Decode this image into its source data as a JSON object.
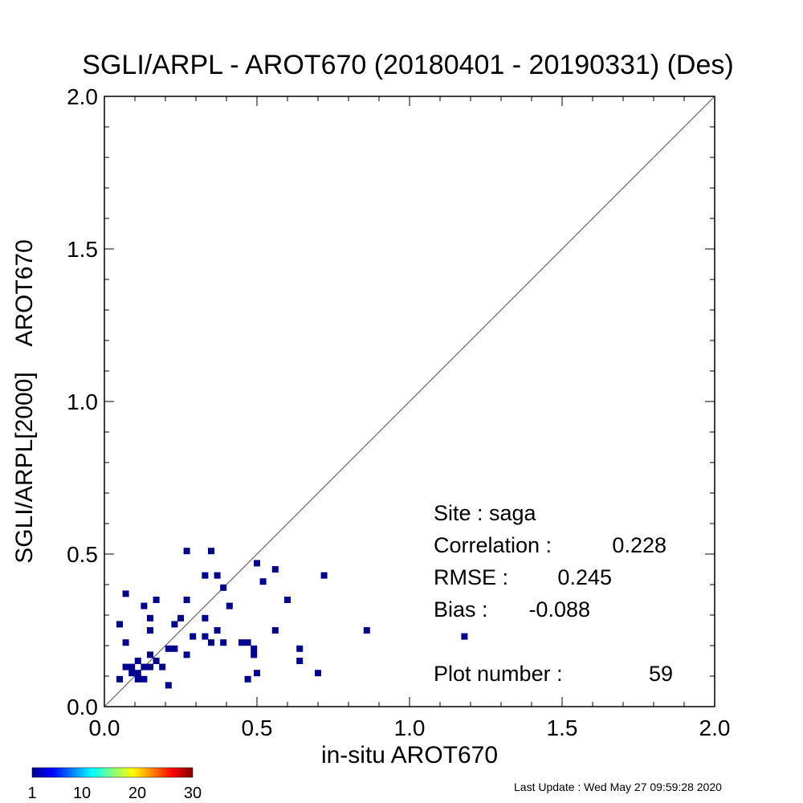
{
  "chart_data": {
    "type": "scatter",
    "title": "SGLI/ARPL - AROT670 (20180401 - 20190331) (Des)",
    "xlabel": "in-situ AROT670",
    "ylabel": "SGLI/ARPL[2000]    AROT670",
    "xlim": [
      0.0,
      2.0
    ],
    "ylim": [
      0.0,
      2.0
    ],
    "x_ticks": [
      "0.0",
      "0.5",
      "1.0",
      "1.5",
      "2.0"
    ],
    "y_ticks": [
      "0.0",
      "0.5",
      "1.0",
      "1.5",
      "2.0"
    ],
    "one_to_one_line": true,
    "grid": false,
    "points": [
      {
        "x": 0.27,
        "y": 0.51
      },
      {
        "x": 0.35,
        "y": 0.51
      },
      {
        "x": 0.5,
        "y": 0.47
      },
      {
        "x": 0.56,
        "y": 0.45
      },
      {
        "x": 0.33,
        "y": 0.43
      },
      {
        "x": 0.37,
        "y": 0.43
      },
      {
        "x": 0.72,
        "y": 0.43
      },
      {
        "x": 0.52,
        "y": 0.41
      },
      {
        "x": 0.39,
        "y": 0.39
      },
      {
        "x": 0.07,
        "y": 0.37
      },
      {
        "x": 0.17,
        "y": 0.35
      },
      {
        "x": 0.27,
        "y": 0.35
      },
      {
        "x": 0.6,
        "y": 0.35
      },
      {
        "x": 0.13,
        "y": 0.33
      },
      {
        "x": 0.41,
        "y": 0.33
      },
      {
        "x": 0.15,
        "y": 0.29
      },
      {
        "x": 0.25,
        "y": 0.29
      },
      {
        "x": 0.33,
        "y": 0.29
      },
      {
        "x": 0.05,
        "y": 0.27
      },
      {
        "x": 0.23,
        "y": 0.27
      },
      {
        "x": 0.15,
        "y": 0.25
      },
      {
        "x": 0.37,
        "y": 0.25
      },
      {
        "x": 0.56,
        "y": 0.25
      },
      {
        "x": 0.86,
        "y": 0.25
      },
      {
        "x": 0.29,
        "y": 0.23
      },
      {
        "x": 0.33,
        "y": 0.23
      },
      {
        "x": 1.18,
        "y": 0.23
      },
      {
        "x": 0.07,
        "y": 0.21
      },
      {
        "x": 0.35,
        "y": 0.21
      },
      {
        "x": 0.39,
        "y": 0.21
      },
      {
        "x": 0.45,
        "y": 0.21
      },
      {
        "x": 0.47,
        "y": 0.21
      },
      {
        "x": 0.21,
        "y": 0.19
      },
      {
        "x": 0.23,
        "y": 0.19
      },
      {
        "x": 0.49,
        "y": 0.19
      },
      {
        "x": 0.64,
        "y": 0.19
      },
      {
        "x": 0.15,
        "y": 0.17
      },
      {
        "x": 0.27,
        "y": 0.17
      },
      {
        "x": 0.49,
        "y": 0.17
      },
      {
        "x": 0.11,
        "y": 0.15
      },
      {
        "x": 0.17,
        "y": 0.15
      },
      {
        "x": 0.64,
        "y": 0.15
      },
      {
        "x": 0.07,
        "y": 0.13
      },
      {
        "x": 0.09,
        "y": 0.13
      },
      {
        "x": 0.13,
        "y": 0.13
      },
      {
        "x": 0.15,
        "y": 0.13
      },
      {
        "x": 0.19,
        "y": 0.13
      },
      {
        "x": 0.09,
        "y": 0.11
      },
      {
        "x": 0.11,
        "y": 0.11
      },
      {
        "x": 0.5,
        "y": 0.11
      },
      {
        "x": 0.7,
        "y": 0.11
      },
      {
        "x": 0.05,
        "y": 0.09
      },
      {
        "x": 0.11,
        "y": 0.09
      },
      {
        "x": 0.13,
        "y": 0.09
      },
      {
        "x": 0.47,
        "y": 0.09
      },
      {
        "x": 0.21,
        "y": 0.07
      }
    ],
    "point_color": "#00008f",
    "stats": {
      "site_label": "Site : saga",
      "correlation_label": "Correlation :",
      "correlation_value": "0.228",
      "rmse_label": "RMSE :",
      "rmse_value": "0.245",
      "bias_label": "Bias :",
      "bias_value": "-0.088",
      "plot_number_label": "Plot number :",
      "plot_number_value": "59"
    },
    "colorbar": {
      "ticks": [
        "1",
        "10",
        "20",
        "30"
      ],
      "colors": [
        "#00008f",
        "#0000ff",
        "#0080ff",
        "#00ffff",
        "#80ff80",
        "#ffff00",
        "#ff8000",
        "#ff0000",
        "#800000"
      ]
    },
    "last_update": "Last Update : Wed May 27 09:59:28 2020"
  }
}
